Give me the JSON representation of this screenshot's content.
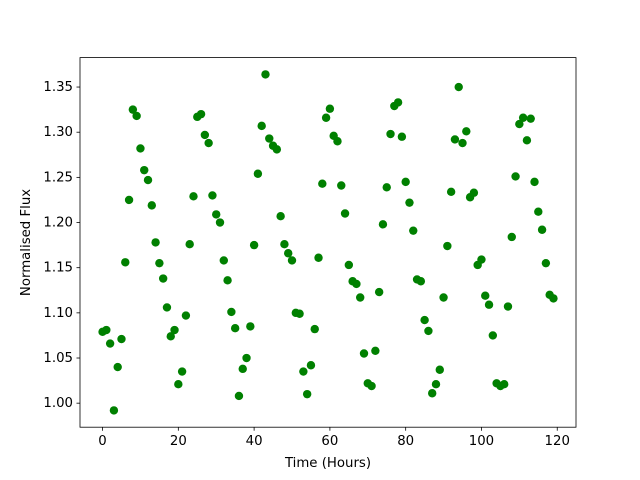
{
  "chart_data": {
    "type": "scatter",
    "x_label": "Time (Hours)",
    "y_label": "Normalised Flux",
    "color": "#008000",
    "x": [
      0,
      1,
      2,
      3,
      4,
      5,
      6,
      7,
      8,
      9,
      10,
      11,
      12,
      13,
      14,
      15,
      16,
      17,
      18,
      19,
      20,
      21,
      22,
      23,
      24,
      25,
      26,
      27,
      28,
      29,
      30,
      31,
      32,
      33,
      34,
      35,
      36,
      37,
      38,
      39,
      40,
      41,
      42,
      43,
      44,
      45,
      46,
      47,
      48,
      49,
      50,
      51,
      52,
      53,
      54,
      55,
      56,
      57,
      58,
      59,
      60,
      61,
      62,
      63,
      64,
      65,
      66,
      67,
      68,
      69,
      70,
      71,
      72,
      73,
      74,
      75,
      76,
      77,
      78,
      79,
      80,
      81,
      82,
      83,
      84,
      85,
      86,
      87,
      88,
      89,
      90,
      91,
      92,
      93,
      94,
      95,
      96,
      97,
      98,
      99,
      100,
      101,
      102,
      103,
      104,
      105,
      106,
      107,
      108,
      109,
      110,
      111,
      112,
      113,
      114,
      115,
      116,
      117,
      118,
      119
    ],
    "values": [
      1.079,
      1.081,
      1.066,
      0.992,
      1.04,
      1.071,
      1.156,
      1.225,
      1.325,
      1.318,
      1.282,
      1.258,
      1.247,
      1.219,
      1.178,
      1.155,
      1.138,
      1.106,
      1.074,
      1.081,
      1.021,
      1.035,
      1.097,
      1.176,
      1.229,
      1.317,
      1.32,
      1.297,
      1.288,
      1.23,
      1.209,
      1.2,
      1.158,
      1.136,
      1.101,
      1.083,
      1.008,
      1.038,
      1.05,
      1.085,
      1.175,
      1.254,
      1.307,
      1.364,
      1.293,
      1.285,
      1.281,
      1.207,
      1.176,
      1.166,
      1.158,
      1.1,
      1.099,
      1.035,
      1.01,
      1.042,
      1.082,
      1.161,
      1.243,
      1.316,
      1.326,
      1.296,
      1.29,
      1.241,
      1.21,
      1.153,
      1.135,
      1.132,
      1.117,
      1.055,
      1.022,
      1.019,
      1.058,
      1.123,
      1.198,
      1.239,
      1.298,
      1.329,
      1.333,
      1.295,
      1.245,
      1.222,
      1.191,
      1.137,
      1.135,
      1.092,
      1.08,
      1.011,
      1.021,
      1.037,
      1.117,
      1.174,
      1.234,
      1.292,
      1.35,
      1.288,
      1.301,
      1.228,
      1.233,
      1.153,
      1.159,
      1.119,
      1.109,
      1.075,
      1.022,
      1.019,
      1.021,
      1.107,
      1.184,
      1.251,
      1.309,
      1.316,
      1.291,
      1.315,
      1.245,
      1.212,
      1.192,
      1.155,
      1.12,
      1.116
    ],
    "xlim": [
      -5.95,
      124.95
    ],
    "xticks": [
      0,
      20,
      40,
      60,
      80,
      100,
      120
    ],
    "ylim": [
      0.9734,
      1.3826
    ],
    "yticks": [
      {
        "value": 1.0,
        "label": "1.00"
      },
      {
        "value": 1.05,
        "label": "1.05"
      },
      {
        "value": 1.1,
        "label": "1.10"
      },
      {
        "value": 1.15,
        "label": "1.15"
      },
      {
        "value": 1.2,
        "label": "1.20"
      },
      {
        "value": 1.25,
        "label": "1.25"
      },
      {
        "value": 1.3,
        "label": "1.30"
      },
      {
        "value": 1.35,
        "label": "1.35"
      }
    ]
  }
}
